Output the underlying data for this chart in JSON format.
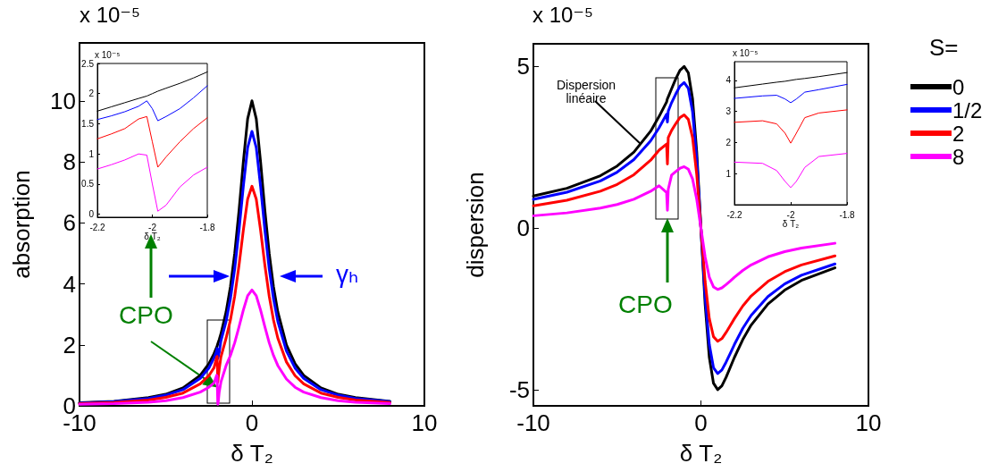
{
  "chart_data": [
    {
      "type": "line",
      "xlabel": "δ T₂",
      "ylabel": "absorption",
      "xlim": [
        -10,
        10
      ],
      "xticks": [
        -10,
        0,
        10
      ],
      "ylim": [
        0,
        11.9
      ],
      "yticks": [
        0,
        2,
        4,
        6,
        8,
        10
      ],
      "marker": "none",
      "line_style": "solid",
      "annotations": [
        "x 10⁻⁵",
        {
          "text": "CPO",
          "x": -2,
          "y": 0.6
        },
        "γₕ"
      ],
      "x": [
        -10,
        -8,
        -6,
        -5,
        -4,
        -3,
        -2.5,
        -2.2,
        -2.05,
        -2.02,
        -2.0,
        -1.98,
        -1.95,
        -1.9,
        -1.8,
        -1.5,
        -1.25,
        -1,
        -0.75,
        -0.5,
        -0.25,
        0,
        0.25,
        0.5,
        0.75,
        1,
        1.25,
        1.5,
        2,
        2.5,
        3,
        4,
        5,
        6,
        8
      ],
      "series": [
        {
          "color": "#000000",
          "values": [
            0.1,
            0.15,
            0.27,
            0.38,
            0.59,
            1.0,
            1.38,
            1.71,
            1.92,
            1.96,
            2.0,
            2.04,
            2.09,
            2.17,
            2.36,
            3.08,
            3.9,
            5.0,
            6.4,
            8.0,
            9.41,
            10.0,
            9.41,
            8.0,
            6.4,
            5.0,
            3.9,
            3.08,
            2.0,
            1.38,
            1.0,
            0.59,
            0.38,
            0.27,
            0.15
          ]
        },
        {
          "color": "#0000ff",
          "values": [
            0.09,
            0.14,
            0.24,
            0.35,
            0.53,
            0.9,
            1.24,
            1.57,
            1.79,
            1.88,
            1.75,
            1.55,
            1.62,
            1.75,
            2.13,
            2.77,
            3.51,
            4.5,
            5.76,
            7.2,
            8.47,
            9.0,
            8.47,
            7.2,
            5.76,
            4.5,
            3.51,
            2.77,
            1.8,
            1.24,
            0.9,
            0.53,
            0.35,
            0.24,
            0.14
          ]
        },
        {
          "color": "#ff0000",
          "values": [
            0.07,
            0.11,
            0.19,
            0.28,
            0.42,
            0.72,
            0.99,
            1.25,
            1.58,
            1.62,
            1.2,
            0.78,
            0.95,
            1.2,
            1.6,
            2.22,
            2.81,
            3.6,
            4.61,
            5.76,
            6.78,
            7.2,
            6.78,
            5.76,
            4.61,
            3.6,
            2.81,
            2.22,
            1.44,
            0.99,
            0.72,
            0.42,
            0.28,
            0.19,
            0.11
          ]
        },
        {
          "color": "#ff00ff",
          "values": [
            0.05,
            0.07,
            0.12,
            0.17,
            0.27,
            0.45,
            0.61,
            0.75,
            1.0,
            0.98,
            0.5,
            0.05,
            0.15,
            0.45,
            0.78,
            1.32,
            1.65,
            2.07,
            2.59,
            3.14,
            3.61,
            3.8,
            3.61,
            3.14,
            2.59,
            2.07,
            1.65,
            1.32,
            0.88,
            0.61,
            0.45,
            0.27,
            0.17,
            0.12,
            0.07
          ]
        }
      ]
    },
    {
      "type": "line",
      "xlabel": "δ T₂",
      "xlim": [
        -2.2,
        -1.8
      ],
      "xticks": [
        -2.2,
        -2,
        -1.8
      ],
      "ylim": [
        -0.05,
        2.5
      ],
      "yticks": [
        0,
        0.5,
        1,
        1.5,
        2,
        2.5
      ],
      "marker": "none",
      "line_style": "solid",
      "annotations": [
        "x 10⁻⁵"
      ],
      "x": [
        -2.2,
        -2.15,
        -2.1,
        -2.05,
        -2.02,
        -2.0,
        -1.98,
        -1.95,
        -1.9,
        -1.85,
        -1.8
      ],
      "series": [
        {
          "color": "#000000",
          "values": [
            1.71,
            1.78,
            1.85,
            1.92,
            1.96,
            2.0,
            2.04,
            2.09,
            2.17,
            2.26,
            2.36
          ]
        },
        {
          "color": "#0000ff",
          "values": [
            1.57,
            1.63,
            1.7,
            1.79,
            1.88,
            1.75,
            1.55,
            1.62,
            1.75,
            1.93,
            2.13
          ]
        },
        {
          "color": "#ff0000",
          "values": [
            1.25,
            1.33,
            1.42,
            1.58,
            1.62,
            1.2,
            0.78,
            0.95,
            1.2,
            1.42,
            1.6
          ]
        },
        {
          "color": "#ff00ff",
          "values": [
            0.75,
            0.82,
            0.9,
            1.0,
            0.98,
            0.5,
            0.05,
            0.15,
            0.45,
            0.65,
            0.78
          ]
        }
      ]
    },
    {
      "type": "line",
      "xlabel": "δ T₂",
      "ylabel": "dispersion",
      "xlim": [
        -10,
        10
      ],
      "xticks": [
        -10,
        0,
        10
      ],
      "ylim": [
        -5.5,
        5.7
      ],
      "yticks": [
        -5,
        0,
        5
      ],
      "marker": "none",
      "line_style": "solid",
      "legend": "right",
      "legend_title": "S=",
      "annotations": [
        "x 10⁻⁵",
        {
          "text": "Dispersion linéaire",
          "x": -3.6,
          "y": 2.6
        },
        "CPO"
      ],
      "x": [
        -10,
        -8,
        -6,
        -5,
        -4,
        -3,
        -2.5,
        -2.05,
        -2,
        -1.95,
        -1.75,
        -1.5,
        -1.25,
        -1,
        -0.75,
        -0.5,
        -0.25,
        0,
        0.25,
        0.5,
        0.75,
        1,
        1.25,
        1.5,
        1.75,
        2,
        2.5,
        3,
        4,
        5,
        6,
        8
      ],
      "series": [
        {
          "name": "0",
          "color": "#000000",
          "values": [
            0.99,
            1.23,
            1.62,
            1.92,
            2.35,
            3.0,
            3.45,
            3.9,
            4.0,
            4.06,
            4.31,
            4.62,
            4.88,
            5.0,
            4.8,
            4.0,
            2.35,
            0,
            -2.35,
            -4.0,
            -4.8,
            -5.0,
            -4.88,
            -4.62,
            -4.31,
            -4.0,
            -3.45,
            -3.0,
            -2.35,
            -1.92,
            -1.62,
            -1.23
          ]
        },
        {
          "name": "1/2",
          "color": "#0000ff",
          "values": [
            0.89,
            1.11,
            1.46,
            1.73,
            2.12,
            2.7,
            3.1,
            3.52,
            3.28,
            3.62,
            3.88,
            4.15,
            4.39,
            4.5,
            4.32,
            3.6,
            2.12,
            0,
            -2.12,
            -3.6,
            -4.32,
            -4.5,
            -4.39,
            -4.15,
            -3.88,
            -3.6,
            -3.1,
            -2.7,
            -2.12,
            -1.73,
            -1.46,
            -1.11
          ]
        },
        {
          "name": "2",
          "color": "#ff0000",
          "values": [
            0.69,
            0.86,
            1.14,
            1.35,
            1.65,
            2.1,
            2.41,
            2.6,
            1.98,
            2.8,
            3.02,
            3.23,
            3.42,
            3.5,
            3.36,
            2.8,
            1.65,
            0,
            -1.65,
            -2.8,
            -3.36,
            -3.5,
            -3.42,
            -3.23,
            -3.02,
            -2.8,
            -2.41,
            -2.1,
            -1.65,
            -1.35,
            -1.14,
            -0.86
          ]
        },
        {
          "name": "8",
          "color": "#ff00ff",
          "values": [
            0.38,
            0.47,
            0.62,
            0.73,
            0.89,
            1.14,
            1.31,
            1.1,
            0.55,
            1.2,
            1.64,
            1.75,
            1.85,
            1.9,
            1.82,
            1.52,
            0.89,
            0,
            -0.89,
            -1.52,
            -1.82,
            -1.9,
            -1.85,
            -1.75,
            -1.64,
            -1.52,
            -1.31,
            -1.14,
            -0.89,
            -0.73,
            -0.62,
            -0.47
          ]
        }
      ]
    },
    {
      "type": "line",
      "xlabel": "δ T₂",
      "xlim": [
        -2.2,
        -1.8
      ],
      "xticks": [
        -2.2,
        -2,
        -1.8
      ],
      "ylim": [
        0,
        4.6
      ],
      "yticks": [
        1,
        2,
        3,
        4
      ],
      "marker": "none",
      "line_style": "solid",
      "annotations": [
        "x 10⁻⁵"
      ],
      "x": [
        -2.2,
        -2.1,
        -2.05,
        -2.02,
        -2.0,
        -1.98,
        -1.95,
        -1.9,
        -1.8
      ],
      "series": [
        {
          "color": "#000000",
          "values": [
            3.76,
            3.88,
            3.94,
            3.97,
            4.0,
            4.03,
            4.06,
            4.12,
            4.25
          ]
        },
        {
          "color": "#0000ff",
          "values": [
            3.42,
            3.5,
            3.52,
            3.4,
            3.28,
            3.4,
            3.62,
            3.7,
            3.87
          ]
        },
        {
          "color": "#ff0000",
          "values": [
            2.65,
            2.7,
            2.6,
            2.3,
            1.98,
            2.3,
            2.8,
            2.95,
            3.05
          ]
        },
        {
          "color": "#ff00ff",
          "values": [
            1.37,
            1.33,
            1.1,
            0.75,
            0.55,
            0.75,
            1.2,
            1.55,
            1.65
          ]
        }
      ]
    }
  ]
}
